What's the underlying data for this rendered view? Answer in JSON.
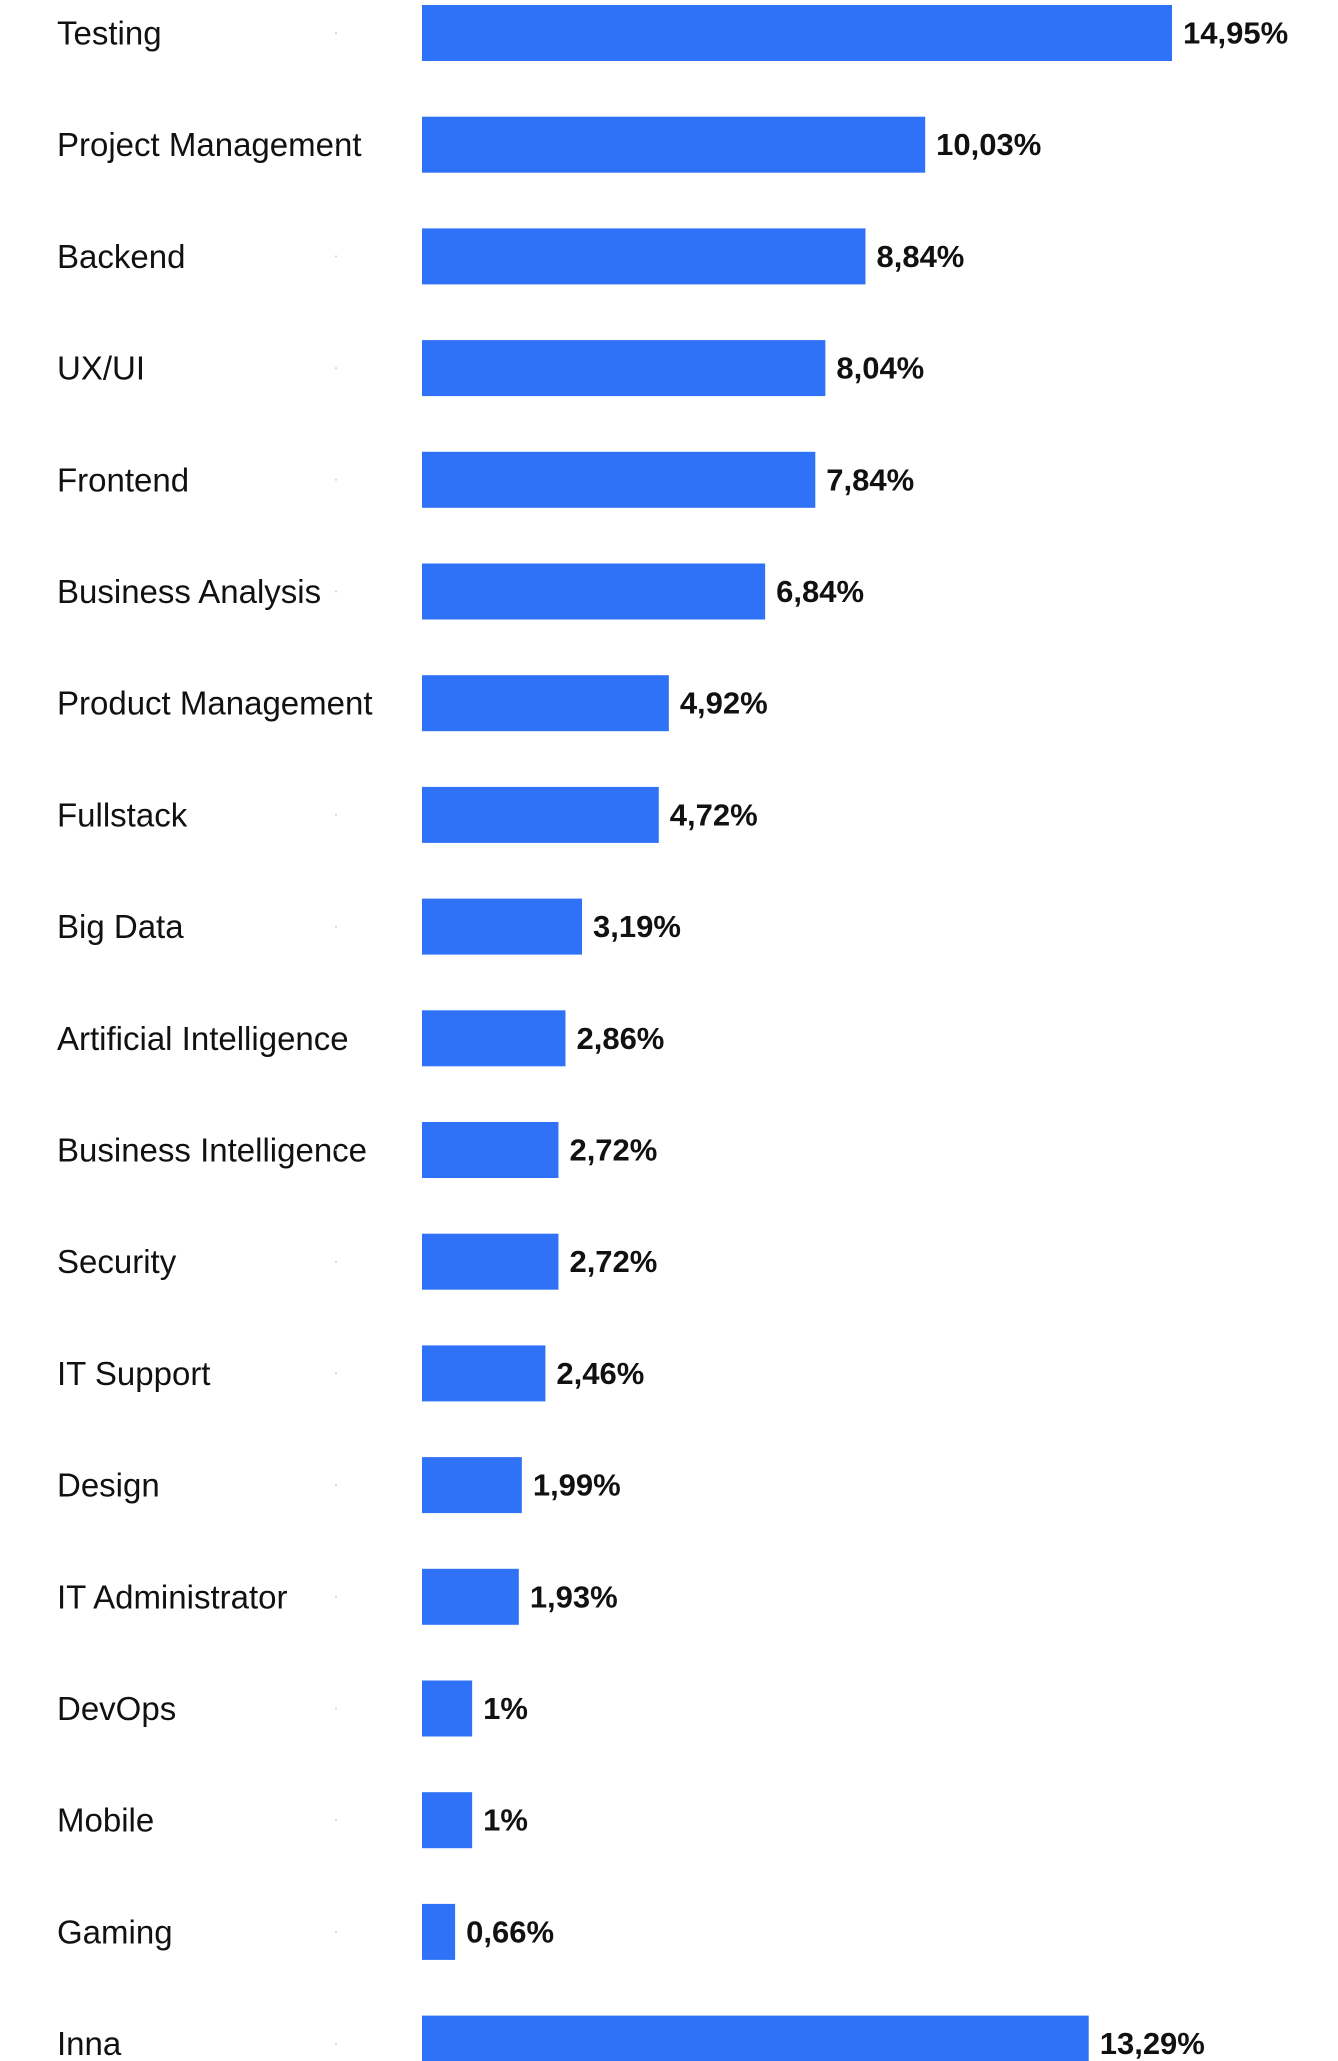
{
  "chart_data": {
    "type": "bar",
    "orientation": "horizontal",
    "categories": [
      "Testing",
      "Project Management",
      "Backend",
      "UX/UI",
      "Frontend",
      "Business Analysis",
      "Product Management",
      "Fullstack",
      "Big Data",
      "Artificial Intelligence",
      "Business Intelligence",
      "Security",
      "IT Support",
      "Design",
      "IT Administrator",
      "DevOps",
      "Mobile",
      "Gaming",
      "Inna"
    ],
    "values": [
      14.95,
      10.03,
      8.84,
      8.04,
      7.84,
      6.84,
      4.92,
      4.72,
      3.19,
      2.86,
      2.72,
      2.72,
      2.46,
      1.99,
      1.93,
      1.0,
      1.0,
      0.66,
      13.29
    ],
    "value_labels": [
      "14,95%",
      "10,03%",
      "8,84%",
      "8,04%",
      "7,84%",
      "6,84%",
      "4,92%",
      "4,72%",
      "3,19%",
      "2,86%",
      "2,72%",
      "2,72%",
      "2,46%",
      "1,99%",
      "1,93%",
      "1%",
      "1%",
      "0,66%",
      "13,29%"
    ],
    "unit": "%",
    "xlim": [
      0,
      14.95
    ],
    "grid": false,
    "legend": "none",
    "bar_color": "#2f72f7",
    "text_color": "#111111"
  }
}
